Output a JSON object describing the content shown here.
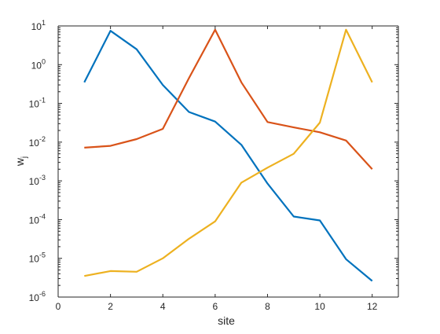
{
  "chart_data": {
    "type": "line",
    "xlabel": "site",
    "ylabel_base": "w",
    "ylabel_sub": "j",
    "xlim": [
      0,
      13
    ],
    "ylim": [
      1e-06,
      10
    ],
    "yscale": "log",
    "grid": false,
    "x": [
      1,
      2,
      3,
      4,
      5,
      6,
      7,
      8,
      9,
      10,
      11,
      12
    ],
    "x_ticks": [
      0,
      2,
      4,
      6,
      8,
      10,
      12
    ],
    "y_tick_exponents": [
      -6,
      -5,
      -4,
      -3,
      -2,
      -1,
      0,
      1
    ],
    "y_tick_base": "10",
    "series": [
      {
        "color": "#0072bd",
        "values": [
          0.35,
          7.5,
          2.5,
          0.3,
          0.06,
          0.034,
          0.0085,
          0.00085,
          0.00012,
          9.5e-05,
          9.5e-06,
          2.6e-06
        ]
      },
      {
        "color": "#d95319",
        "values": [
          0.0072,
          0.008,
          0.012,
          0.022,
          0.45,
          8.0,
          0.35,
          0.033,
          0.024,
          0.018,
          0.011,
          0.002
        ]
      },
      {
        "color": "#edb120",
        "values": [
          3.5e-06,
          4.7e-06,
          4.5e-06,
          1e-05,
          3.2e-05,
          9e-05,
          0.0009,
          0.0022,
          0.005,
          0.032,
          8.0,
          0.35
        ]
      }
    ]
  }
}
